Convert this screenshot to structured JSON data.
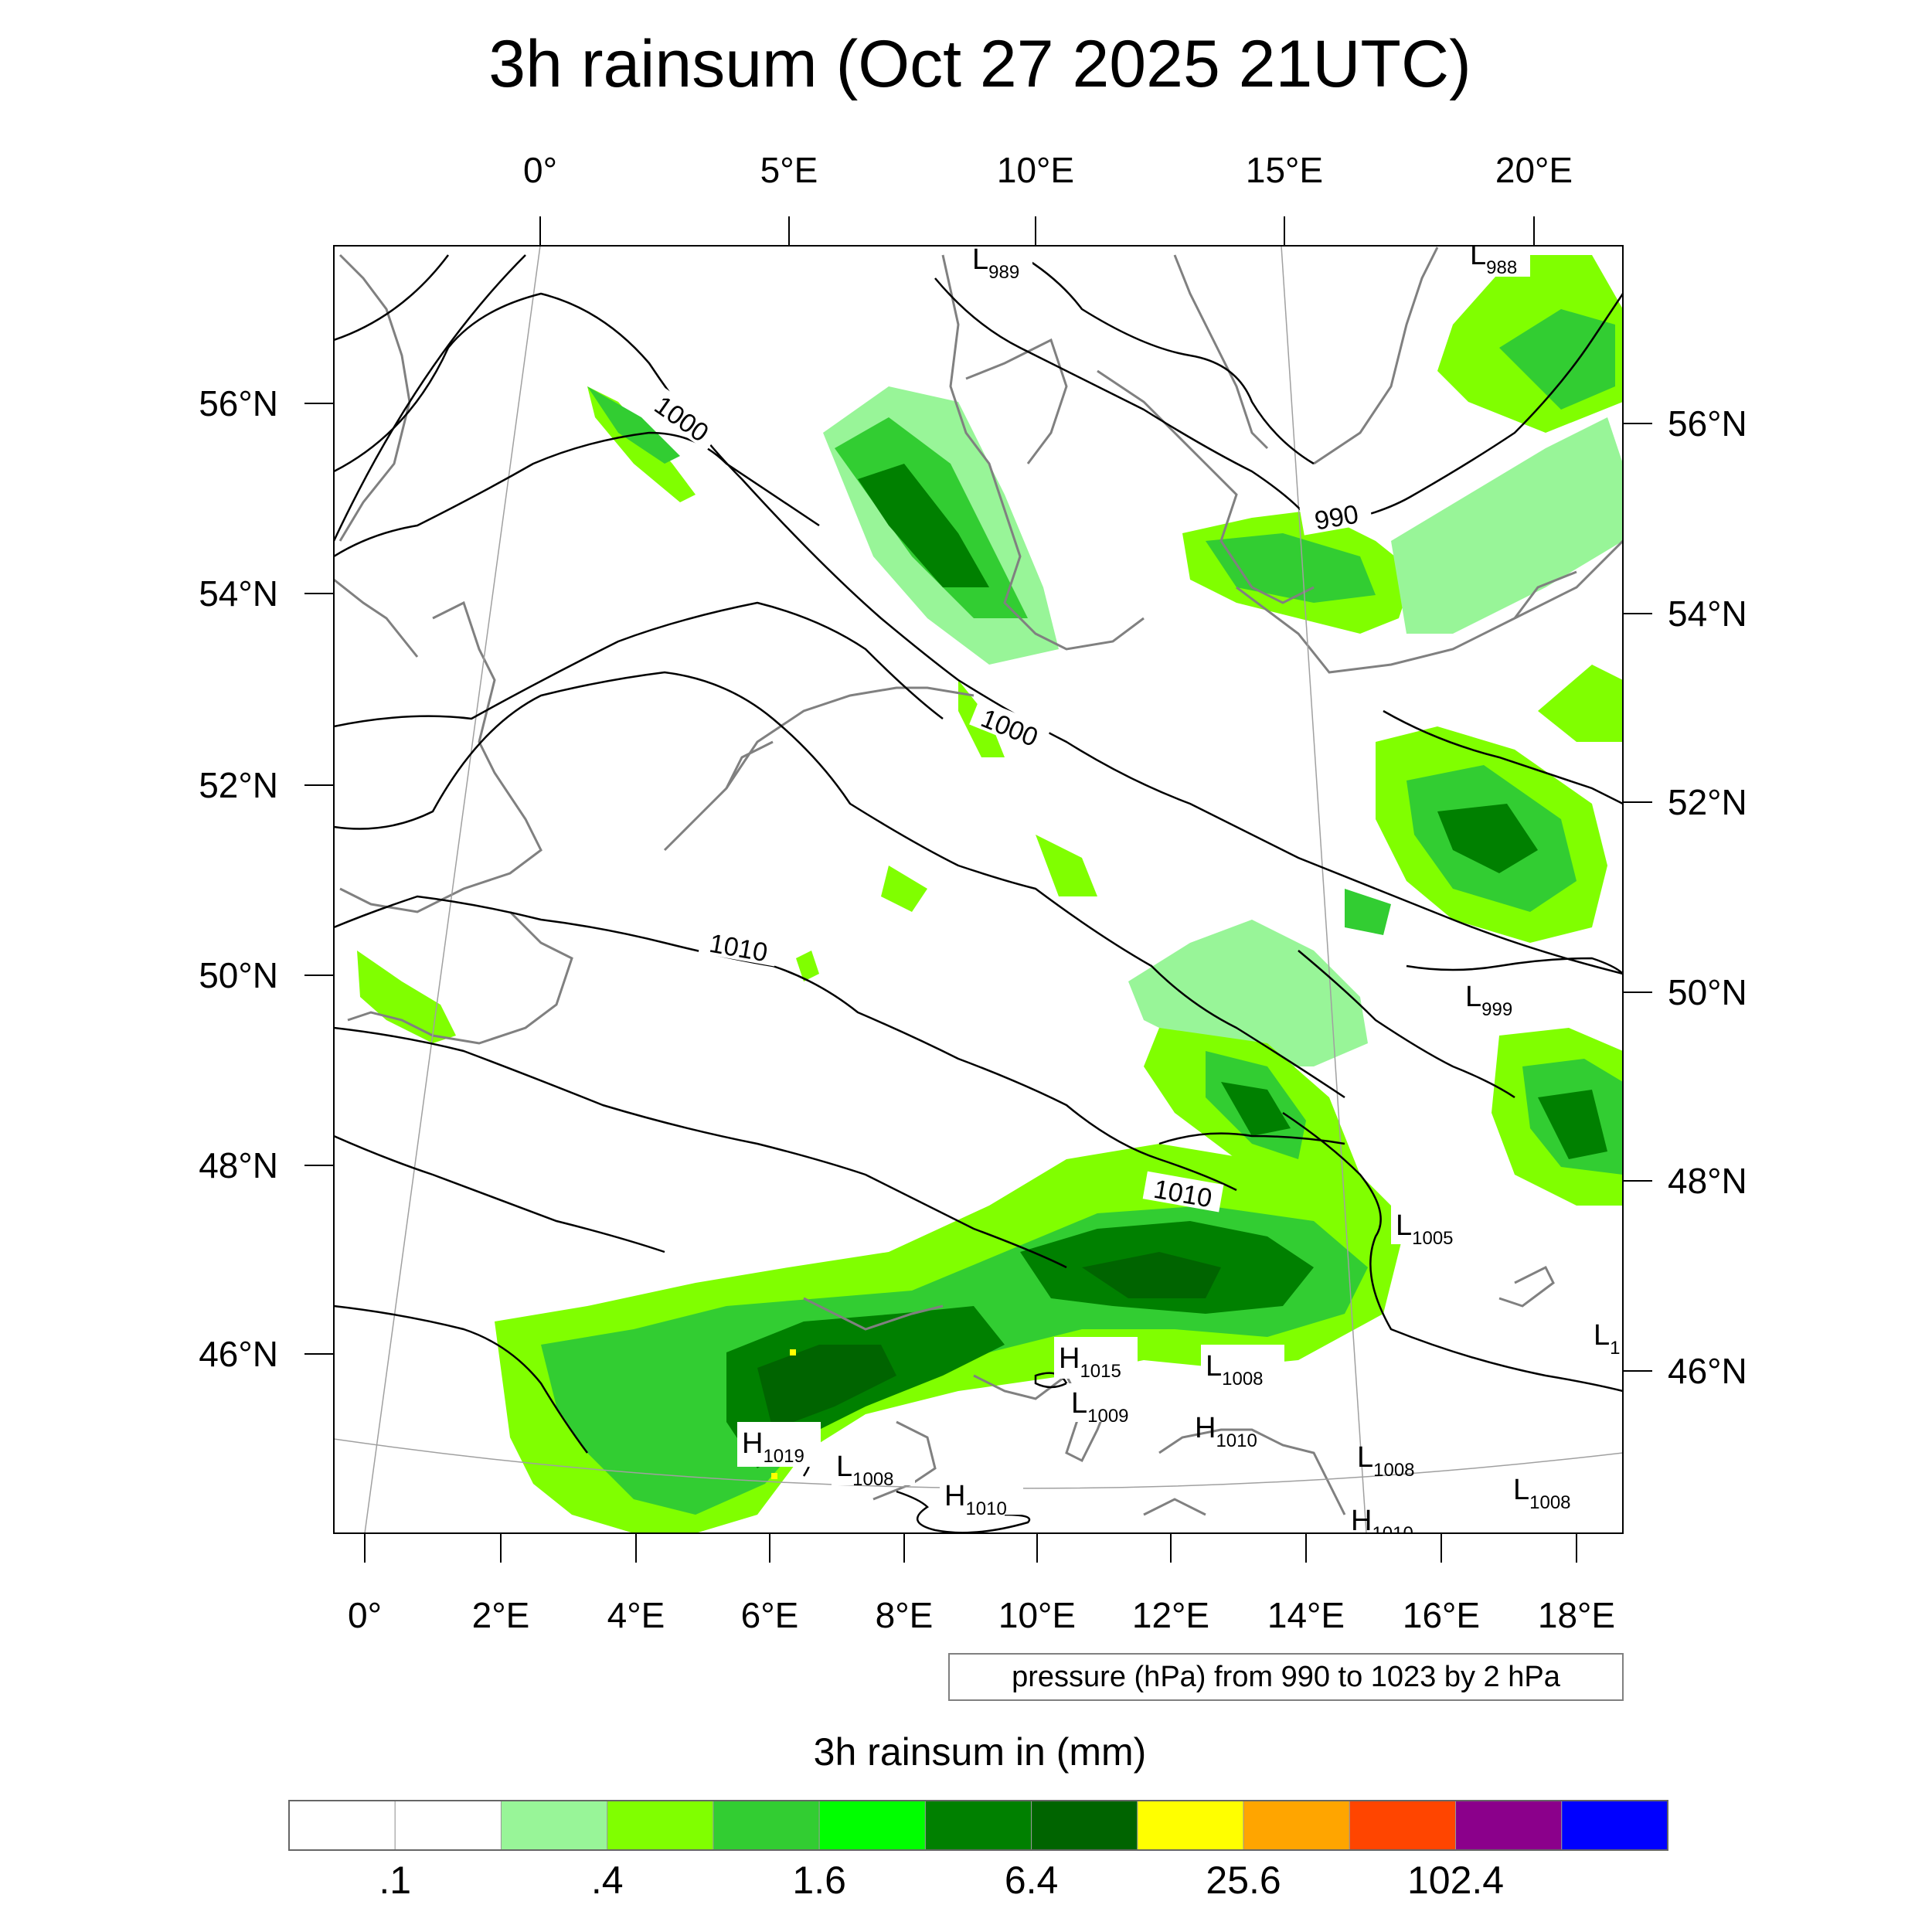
{
  "title": "3h rainsum (Oct 27 2025 21UTC)",
  "top_lon_labels": [
    "0°",
    "5°E",
    "10°E",
    "15°E",
    "20°E"
  ],
  "bottom_lon_labels": [
    "0°",
    "2°E",
    "4°E",
    "6°E",
    "8°E",
    "10°E",
    "12°E",
    "14°E",
    "16°E",
    "18°E"
  ],
  "left_lat_labels": [
    "56°N",
    "54°N",
    "52°N",
    "50°N",
    "48°N",
    "46°N"
  ],
  "right_lat_labels": [
    "56°N",
    "54°N",
    "52°N",
    "50°N",
    "48°N",
    "46°N"
  ],
  "isobar_labels": [
    "1000",
    "990",
    "1000",
    "1010",
    "1010"
  ],
  "pressure_centers": [
    {
      "type": "L",
      "value": "989"
    },
    {
      "type": "L",
      "value": "988"
    },
    {
      "type": "L",
      "value": "999"
    },
    {
      "type": "L",
      "value": "1005"
    },
    {
      "type": "L",
      "value": "1"
    },
    {
      "type": "H",
      "value": "1015"
    },
    {
      "type": "L",
      "value": "1008"
    },
    {
      "type": "L",
      "value": "1009"
    },
    {
      "type": "H",
      "value": "1010"
    },
    {
      "type": "L",
      "value": "1008"
    },
    {
      "type": "H",
      "value": "1019"
    },
    {
      "type": "L",
      "value": "1008"
    },
    {
      "type": "H",
      "value": "1010"
    },
    {
      "type": "L",
      "value": "1008"
    },
    {
      "type": "H",
      "value": "1010"
    }
  ],
  "info_box": "pressure (hPa) from 990 to 1023 by 2 hPa",
  "colorbar": {
    "title": "3h rainsum in (mm)",
    "colors": [
      "#ffffff",
      "#ffffff",
      "#98f598",
      "#80ff00",
      "#32cd32",
      "#00ff00",
      "#008000",
      "#006400",
      "#ffff00",
      "#ffa500",
      "#ff4500",
      "#8b008b",
      "#0000ff"
    ],
    "labels": [
      ".1",
      ".4",
      "1.6",
      "6.4",
      "25.6",
      "102.4"
    ]
  },
  "colors": {
    "coast": "#808080",
    "isobar": "#000000",
    "graticule": "#a0a0a0"
  }
}
